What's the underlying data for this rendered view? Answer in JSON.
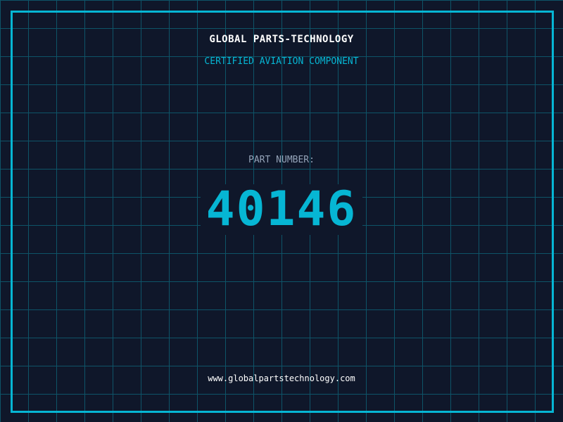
{
  "header": {
    "title": "GLOBAL PARTS-TECHNOLOGY",
    "subtitle": "CERTIFIED AVIATION COMPONENT"
  },
  "part": {
    "label": "PART NUMBER:",
    "number": "40146"
  },
  "footer": {
    "url": "www.globalpartstechnology.com"
  },
  "colors": {
    "background": "#0f172a",
    "accent": "#06b6d4",
    "grid": "#0e5468",
    "label": "#94a3b8"
  }
}
